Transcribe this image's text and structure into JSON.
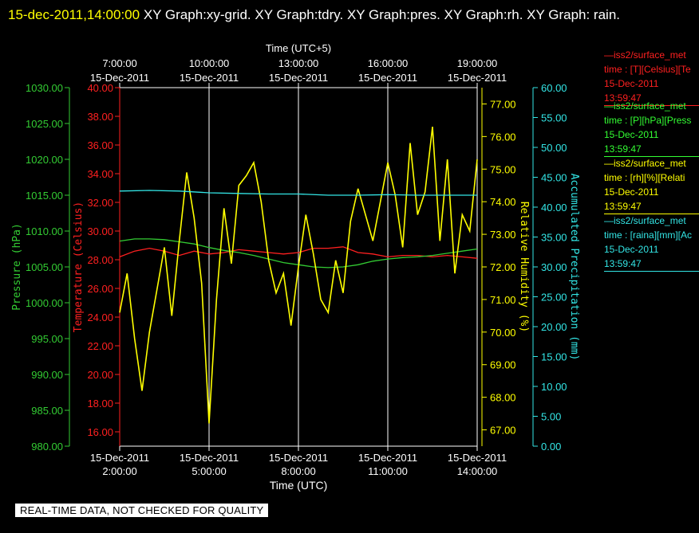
{
  "title": {
    "timestamp": "15-dec-2011,14:00:00",
    "rest": " XY Graph:xy-grid.  XY Graph:tdry.  XY Graph:pres.  XY Graph:rh.  XY Graph: rain."
  },
  "badge": "REAL-TIME DATA, NOT CHECKED FOR QUALITY",
  "legend": [
    {
      "line1": "—iss2/surface_met",
      "line2": "time : [T][Celsius][Te",
      "line3": "15-Dec-2011",
      "line4": "13:59:47",
      "color": "#ff2020"
    },
    {
      "line1": "—iss2/surface_met",
      "line2": "time : [P][hPa][Press",
      "line3": "15-Dec-2011",
      "line4": "13:59:47",
      "color": "#33ff33"
    },
    {
      "line1": "—iss2/surface_met",
      "line2": "time : [rh][%][Relati",
      "line3": "15-Dec-2011",
      "line4": "13:59:47",
      "color": "#ffff00"
    },
    {
      "line1": "—iss2/surface_met",
      "line2": "time : [raina][mm][Ac",
      "line3": "15-Dec-2011",
      "line4": "13:59:47",
      "color": "#33e6e6"
    }
  ],
  "chart_data": {
    "type": "line",
    "xlabel_bottom": "Time (UTC)",
    "xlabel_top": "Time (UTC+5)",
    "bottom_ticks": [
      {
        "date": "15-Dec-2011",
        "time": "2:00:00"
      },
      {
        "date": "15-Dec-2011",
        "time": "5:00:00"
      },
      {
        "date": "15-Dec-2011",
        "time": "8:00:00"
      },
      {
        "date": "15-Dec-2011",
        "time": "11:00:00"
      },
      {
        "date": "15-Dec-2011",
        "time": "14:00:00"
      }
    ],
    "top_ticks": [
      {
        "date": "15-Dec-2011",
        "time": "7:00:00"
      },
      {
        "date": "15-Dec-2011",
        "time": "10:00:00"
      },
      {
        "date": "15-Dec-2011",
        "time": "13:00:00"
      },
      {
        "date": "15-Dec-2011",
        "time": "16:00:00"
      },
      {
        "date": "15-Dec-2011",
        "time": "19:00:00"
      }
    ],
    "x_hours_utc": [
      2,
      14
    ],
    "grid": "vertical",
    "axes": {
      "pressure": {
        "label": "Pressure (hPa)",
        "range": [
          980,
          1030
        ],
        "step": 5,
        "color": "#33cc33"
      },
      "temperature": {
        "label": "Temperature (Celsius)",
        "range": [
          15,
          40
        ],
        "step": 2,
        "color": "#ff2020"
      },
      "rh": {
        "label": "Relative Humidity (%)",
        "range": [
          66.5,
          77.5
        ],
        "step": 1,
        "color": "#ffff00"
      },
      "rain": {
        "label": "Accumulated Precipitation (mm)",
        "range": [
          0,
          60
        ],
        "step": 5,
        "color": "#33e6e6"
      }
    },
    "series": [
      {
        "name": "Temperature",
        "axis": "temperature",
        "color": "#ff2020",
        "x": [
          2,
          2.5,
          3,
          3.5,
          4,
          4.5,
          5,
          5.5,
          6,
          6.5,
          7,
          7.5,
          8,
          8.5,
          9,
          9.5,
          10,
          10.5,
          11,
          11.5,
          12,
          12.5,
          13,
          13.5,
          14
        ],
        "y": [
          28.2,
          28.6,
          28.8,
          28.6,
          28.3,
          28.6,
          28.4,
          28.5,
          28.7,
          28.6,
          28.5,
          28.4,
          28.5,
          28.8,
          28.8,
          28.9,
          28.5,
          28.4,
          28.2,
          28.3,
          28.3,
          28.2,
          28.3,
          28.2,
          28.1
        ]
      },
      {
        "name": "Pressure",
        "axis": "pressure",
        "color": "#33cc33",
        "x": [
          2,
          2.5,
          3,
          3.5,
          4,
          4.5,
          5,
          5.5,
          6,
          6.5,
          7,
          7.5,
          8,
          8.5,
          9,
          9.5,
          10,
          10.5,
          11,
          11.5,
          12,
          12.5,
          13,
          13.5,
          14
        ],
        "y": [
          1008.6,
          1008.9,
          1008.9,
          1008.8,
          1008.5,
          1008.2,
          1007.7,
          1007.3,
          1007.0,
          1006.6,
          1006.1,
          1005.6,
          1005.3,
          1005.0,
          1004.9,
          1005.0,
          1005.3,
          1005.8,
          1006.1,
          1006.3,
          1006.4,
          1006.6,
          1006.9,
          1007.2,
          1007.5
        ]
      },
      {
        "name": "Relative Humidity",
        "axis": "rh",
        "color": "#ffff00",
        "x": [
          2,
          2.25,
          2.5,
          2.75,
          3,
          3.25,
          3.5,
          3.75,
          4,
          4.25,
          4.5,
          4.75,
          5,
          5.25,
          5.5,
          5.75,
          6,
          6.25,
          6.5,
          6.75,
          7,
          7.25,
          7.5,
          7.75,
          8,
          8.25,
          8.5,
          8.75,
          9,
          9.25,
          9.5,
          9.75,
          10,
          10.25,
          10.5,
          10.75,
          11,
          11.25,
          11.5,
          11.75,
          12,
          12.25,
          12.5,
          12.75,
          13,
          13.25,
          13.5,
          13.75,
          14
        ],
        "y": [
          70.6,
          71.8,
          69.8,
          68.2,
          70.0,
          71.3,
          72.6,
          70.5,
          72.8,
          74.9,
          73.5,
          71.5,
          67.2,
          71.0,
          73.8,
          72.1,
          74.5,
          74.8,
          75.2,
          74.0,
          72.2,
          71.2,
          71.8,
          70.2,
          72.0,
          73.6,
          72.4,
          71.0,
          70.6,
          72.2,
          71.2,
          73.4,
          74.4,
          73.6,
          72.8,
          74.0,
          75.2,
          74.2,
          72.6,
          75.8,
          73.6,
          74.3,
          76.3,
          72.8,
          75.3,
          71.8,
          73.6,
          73.1,
          75.3
        ]
      },
      {
        "name": "Accumulated Precipitation",
        "axis": "rain",
        "color": "#33e6e6",
        "x": [
          2,
          3,
          4,
          5,
          6,
          7,
          8,
          9,
          10,
          11,
          12,
          13,
          14
        ],
        "y": [
          42.7,
          42.8,
          42.7,
          42.4,
          42.3,
          42.2,
          42.2,
          42.0,
          42.0,
          42.1,
          42.0,
          42.0,
          42.0
        ]
      }
    ]
  }
}
